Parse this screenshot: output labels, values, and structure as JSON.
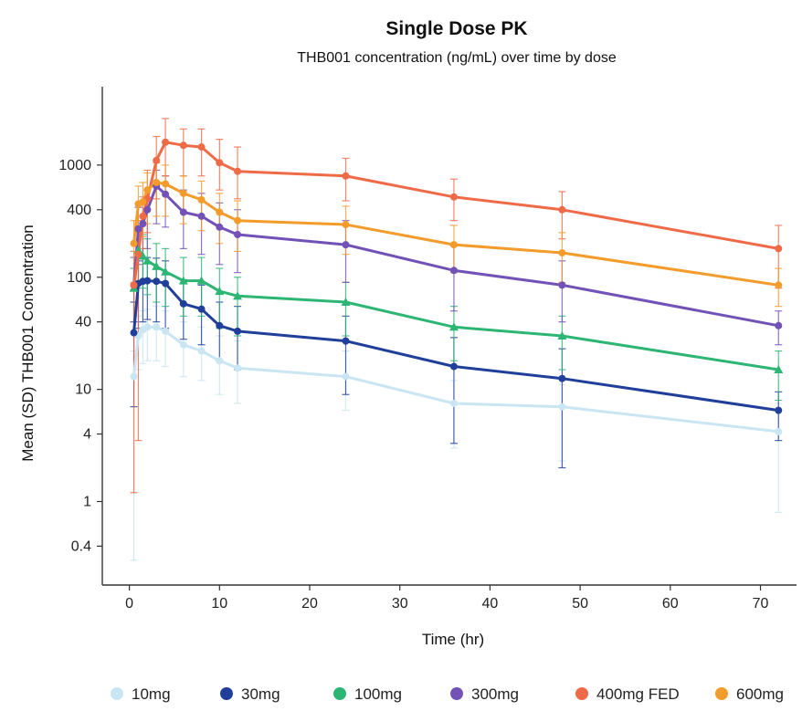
{
  "chart_data": {
    "type": "line",
    "title": "Single Dose PK",
    "subtitle": "THB001 concentration (ng/mL) over time by dose",
    "xlabel": "Time (hr)",
    "ylabel": "Mean (SD) THB001 Concentration",
    "y_scale": "log",
    "xlim": [
      -3,
      74
    ],
    "ylim": [
      0.18,
      5000
    ],
    "x_ticks": [
      0,
      10,
      20,
      30,
      40,
      50,
      60,
      70
    ],
    "y_ticks": [
      0.4,
      1,
      4,
      10,
      40,
      100,
      400,
      1000
    ],
    "y_tick_labels": [
      "0.4",
      "1",
      "4",
      "10",
      "40",
      "100",
      "400",
      "1000"
    ],
    "legend_position": "bottom",
    "grid": false,
    "series": [
      {
        "name": "10mg",
        "color": "#c9e6f2",
        "marker": "circle",
        "points": [
          {
            "x": 0.5,
            "y": 13,
            "lo": 0.3,
            "hi": 22
          },
          {
            "x": 1,
            "y": 30,
            "lo": 15,
            "hi": 45
          },
          {
            "x": 1.5,
            "y": 34,
            "lo": 17,
            "hi": 50
          },
          {
            "x": 2,
            "y": 36,
            "lo": 18,
            "hi": 52
          },
          {
            "x": 3,
            "y": 36,
            "lo": 18,
            "hi": 55
          },
          {
            "x": 4,
            "y": 33,
            "lo": 16,
            "hi": 50
          },
          {
            "x": 6,
            "y": 25,
            "lo": 13,
            "hi": 40
          },
          {
            "x": 8,
            "y": 22,
            "lo": 12,
            "hi": 36
          },
          {
            "x": 10,
            "y": 18,
            "lo": 9,
            "hi": 30
          },
          {
            "x": 12,
            "y": 15.5,
            "lo": 7.5,
            "hi": 27
          },
          {
            "x": 24,
            "y": 13,
            "lo": 6.5,
            "hi": 22
          },
          {
            "x": 36,
            "y": 7.5,
            "lo": 3,
            "hi": 12
          },
          {
            "x": 48,
            "y": 7,
            "lo": 2.3,
            "hi": 11
          },
          {
            "x": 72,
            "y": 4.2,
            "lo": 0.8,
            "hi": 7.5
          }
        ]
      },
      {
        "name": "30mg",
        "color": "#1f3f9a",
        "marker": "circle",
        "points": [
          {
            "x": 0.5,
            "y": 32,
            "lo": 7,
            "hi": 60
          },
          {
            "x": 1,
            "y": 88,
            "lo": 35,
            "hi": 140
          },
          {
            "x": 1.5,
            "y": 92,
            "lo": 40,
            "hi": 150
          },
          {
            "x": 2,
            "y": 93,
            "lo": 42,
            "hi": 150
          },
          {
            "x": 3,
            "y": 92,
            "lo": 40,
            "hi": 148
          },
          {
            "x": 4,
            "y": 88,
            "lo": 35,
            "hi": 140
          },
          {
            "x": 6,
            "y": 58,
            "lo": 28,
            "hi": 95
          },
          {
            "x": 8,
            "y": 52,
            "lo": 25,
            "hi": 85
          },
          {
            "x": 10,
            "y": 37,
            "lo": 18,
            "hi": 60
          },
          {
            "x": 12,
            "y": 33,
            "lo": 15,
            "hi": 55
          },
          {
            "x": 24,
            "y": 27,
            "lo": 9,
            "hi": 45
          },
          {
            "x": 36,
            "y": 16,
            "lo": 3.3,
            "hi": 29
          },
          {
            "x": 48,
            "y": 12.5,
            "lo": 2,
            "hi": 23
          },
          {
            "x": 72,
            "y": 6.5,
            "lo": 3.5,
            "hi": 9.5
          }
        ]
      },
      {
        "name": "100mg",
        "color": "#2db574",
        "marker": "triangle",
        "points": [
          {
            "x": 0.5,
            "y": 80,
            "lo": 40,
            "hi": 120
          },
          {
            "x": 1,
            "y": 175,
            "lo": 90,
            "hi": 260
          },
          {
            "x": 1.5,
            "y": 155,
            "lo": 80,
            "hi": 240
          },
          {
            "x": 2,
            "y": 140,
            "lo": 70,
            "hi": 220
          },
          {
            "x": 3,
            "y": 125,
            "lo": 60,
            "hi": 200
          },
          {
            "x": 4,
            "y": 112,
            "lo": 55,
            "hi": 180
          },
          {
            "x": 6,
            "y": 93,
            "lo": 45,
            "hi": 150
          },
          {
            "x": 8,
            "y": 93,
            "lo": 45,
            "hi": 150
          },
          {
            "x": 10,
            "y": 75,
            "lo": 35,
            "hi": 120
          },
          {
            "x": 12,
            "y": 68,
            "lo": 30,
            "hi": 100
          },
          {
            "x": 24,
            "y": 60,
            "lo": 30,
            "hi": 90
          },
          {
            "x": 36,
            "y": 36,
            "lo": 18,
            "hi": 55
          },
          {
            "x": 48,
            "y": 30,
            "lo": 15,
            "hi": 45
          },
          {
            "x": 72,
            "y": 15,
            "lo": 8,
            "hi": 22
          }
        ]
      },
      {
        "name": "300mg",
        "color": "#7352b8",
        "marker": "circle",
        "points": [
          {
            "x": 0.5,
            "y": 85,
            "lo": 40,
            "hi": 150
          },
          {
            "x": 1,
            "y": 270,
            "lo": 130,
            "hi": 420
          },
          {
            "x": 1.5,
            "y": 300,
            "lo": 150,
            "hi": 470
          },
          {
            "x": 2,
            "y": 400,
            "lo": 180,
            "hi": 600
          },
          {
            "x": 3,
            "y": 650,
            "lo": 300,
            "hi": 900
          },
          {
            "x": 4,
            "y": 550,
            "lo": 280,
            "hi": 800
          },
          {
            "x": 6,
            "y": 380,
            "lo": 180,
            "hi": 600
          },
          {
            "x": 8,
            "y": 350,
            "lo": 160,
            "hi": 560
          },
          {
            "x": 10,
            "y": 280,
            "lo": 130,
            "hi": 460
          },
          {
            "x": 12,
            "y": 240,
            "lo": 110,
            "hi": 400
          },
          {
            "x": 24,
            "y": 195,
            "lo": 90,
            "hi": 320
          },
          {
            "x": 36,
            "y": 115,
            "lo": 50,
            "hi": 190
          },
          {
            "x": 48,
            "y": 85,
            "lo": 40,
            "hi": 140
          },
          {
            "x": 72,
            "y": 37,
            "lo": 25,
            "hi": 50
          }
        ]
      },
      {
        "name": "400mg FED",
        "color": "#ef6a47",
        "marker": "circle",
        "points": [
          {
            "x": 0.5,
            "y": 85,
            "lo": 1.2,
            "hi": 170
          },
          {
            "x": 1,
            "y": 160,
            "lo": 3.5,
            "hi": 320
          },
          {
            "x": 1.5,
            "y": 350,
            "lo": 180,
            "hi": 520
          },
          {
            "x": 2,
            "y": 500,
            "lo": 250,
            "hi": 900
          },
          {
            "x": 3,
            "y": 1100,
            "lo": 500,
            "hi": 1800
          },
          {
            "x": 4,
            "y": 1600,
            "lo": 800,
            "hi": 2600
          },
          {
            "x": 6,
            "y": 1500,
            "lo": 800,
            "hi": 2100
          },
          {
            "x": 8,
            "y": 1450,
            "lo": 800,
            "hi": 2100
          },
          {
            "x": 10,
            "y": 1050,
            "lo": 600,
            "hi": 1700
          },
          {
            "x": 12,
            "y": 880,
            "lo": 500,
            "hi": 1450
          },
          {
            "x": 24,
            "y": 800,
            "lo": 480,
            "hi": 1150
          },
          {
            "x": 36,
            "y": 520,
            "lo": 320,
            "hi": 750
          },
          {
            "x": 48,
            "y": 400,
            "lo": 220,
            "hi": 580
          },
          {
            "x": 72,
            "y": 180,
            "lo": 80,
            "hi": 290
          }
        ]
      },
      {
        "name": "600mg",
        "color": "#f39c2c",
        "marker": "circle",
        "points": [
          {
            "x": 0.5,
            "y": 200,
            "lo": 90,
            "hi": 320
          },
          {
            "x": 1,
            "y": 450,
            "lo": 220,
            "hi": 650
          },
          {
            "x": 1.5,
            "y": 470,
            "lo": 230,
            "hi": 700
          },
          {
            "x": 2,
            "y": 600,
            "lo": 300,
            "hi": 850
          },
          {
            "x": 3,
            "y": 700,
            "lo": 350,
            "hi": 1050
          },
          {
            "x": 4,
            "y": 680,
            "lo": 350,
            "hi": 1000
          },
          {
            "x": 6,
            "y": 560,
            "lo": 300,
            "hi": 800
          },
          {
            "x": 8,
            "y": 490,
            "lo": 260,
            "hi": 720
          },
          {
            "x": 10,
            "y": 380,
            "lo": 200,
            "hi": 560
          },
          {
            "x": 12,
            "y": 320,
            "lo": 170,
            "hi": 480
          },
          {
            "x": 24,
            "y": 295,
            "lo": 160,
            "hi": 430
          },
          {
            "x": 36,
            "y": 195,
            "lo": 110,
            "hi": 290
          },
          {
            "x": 48,
            "y": 165,
            "lo": 90,
            "hi": 250
          },
          {
            "x": 72,
            "y": 85,
            "lo": 55,
            "hi": 120
          }
        ]
      }
    ]
  }
}
